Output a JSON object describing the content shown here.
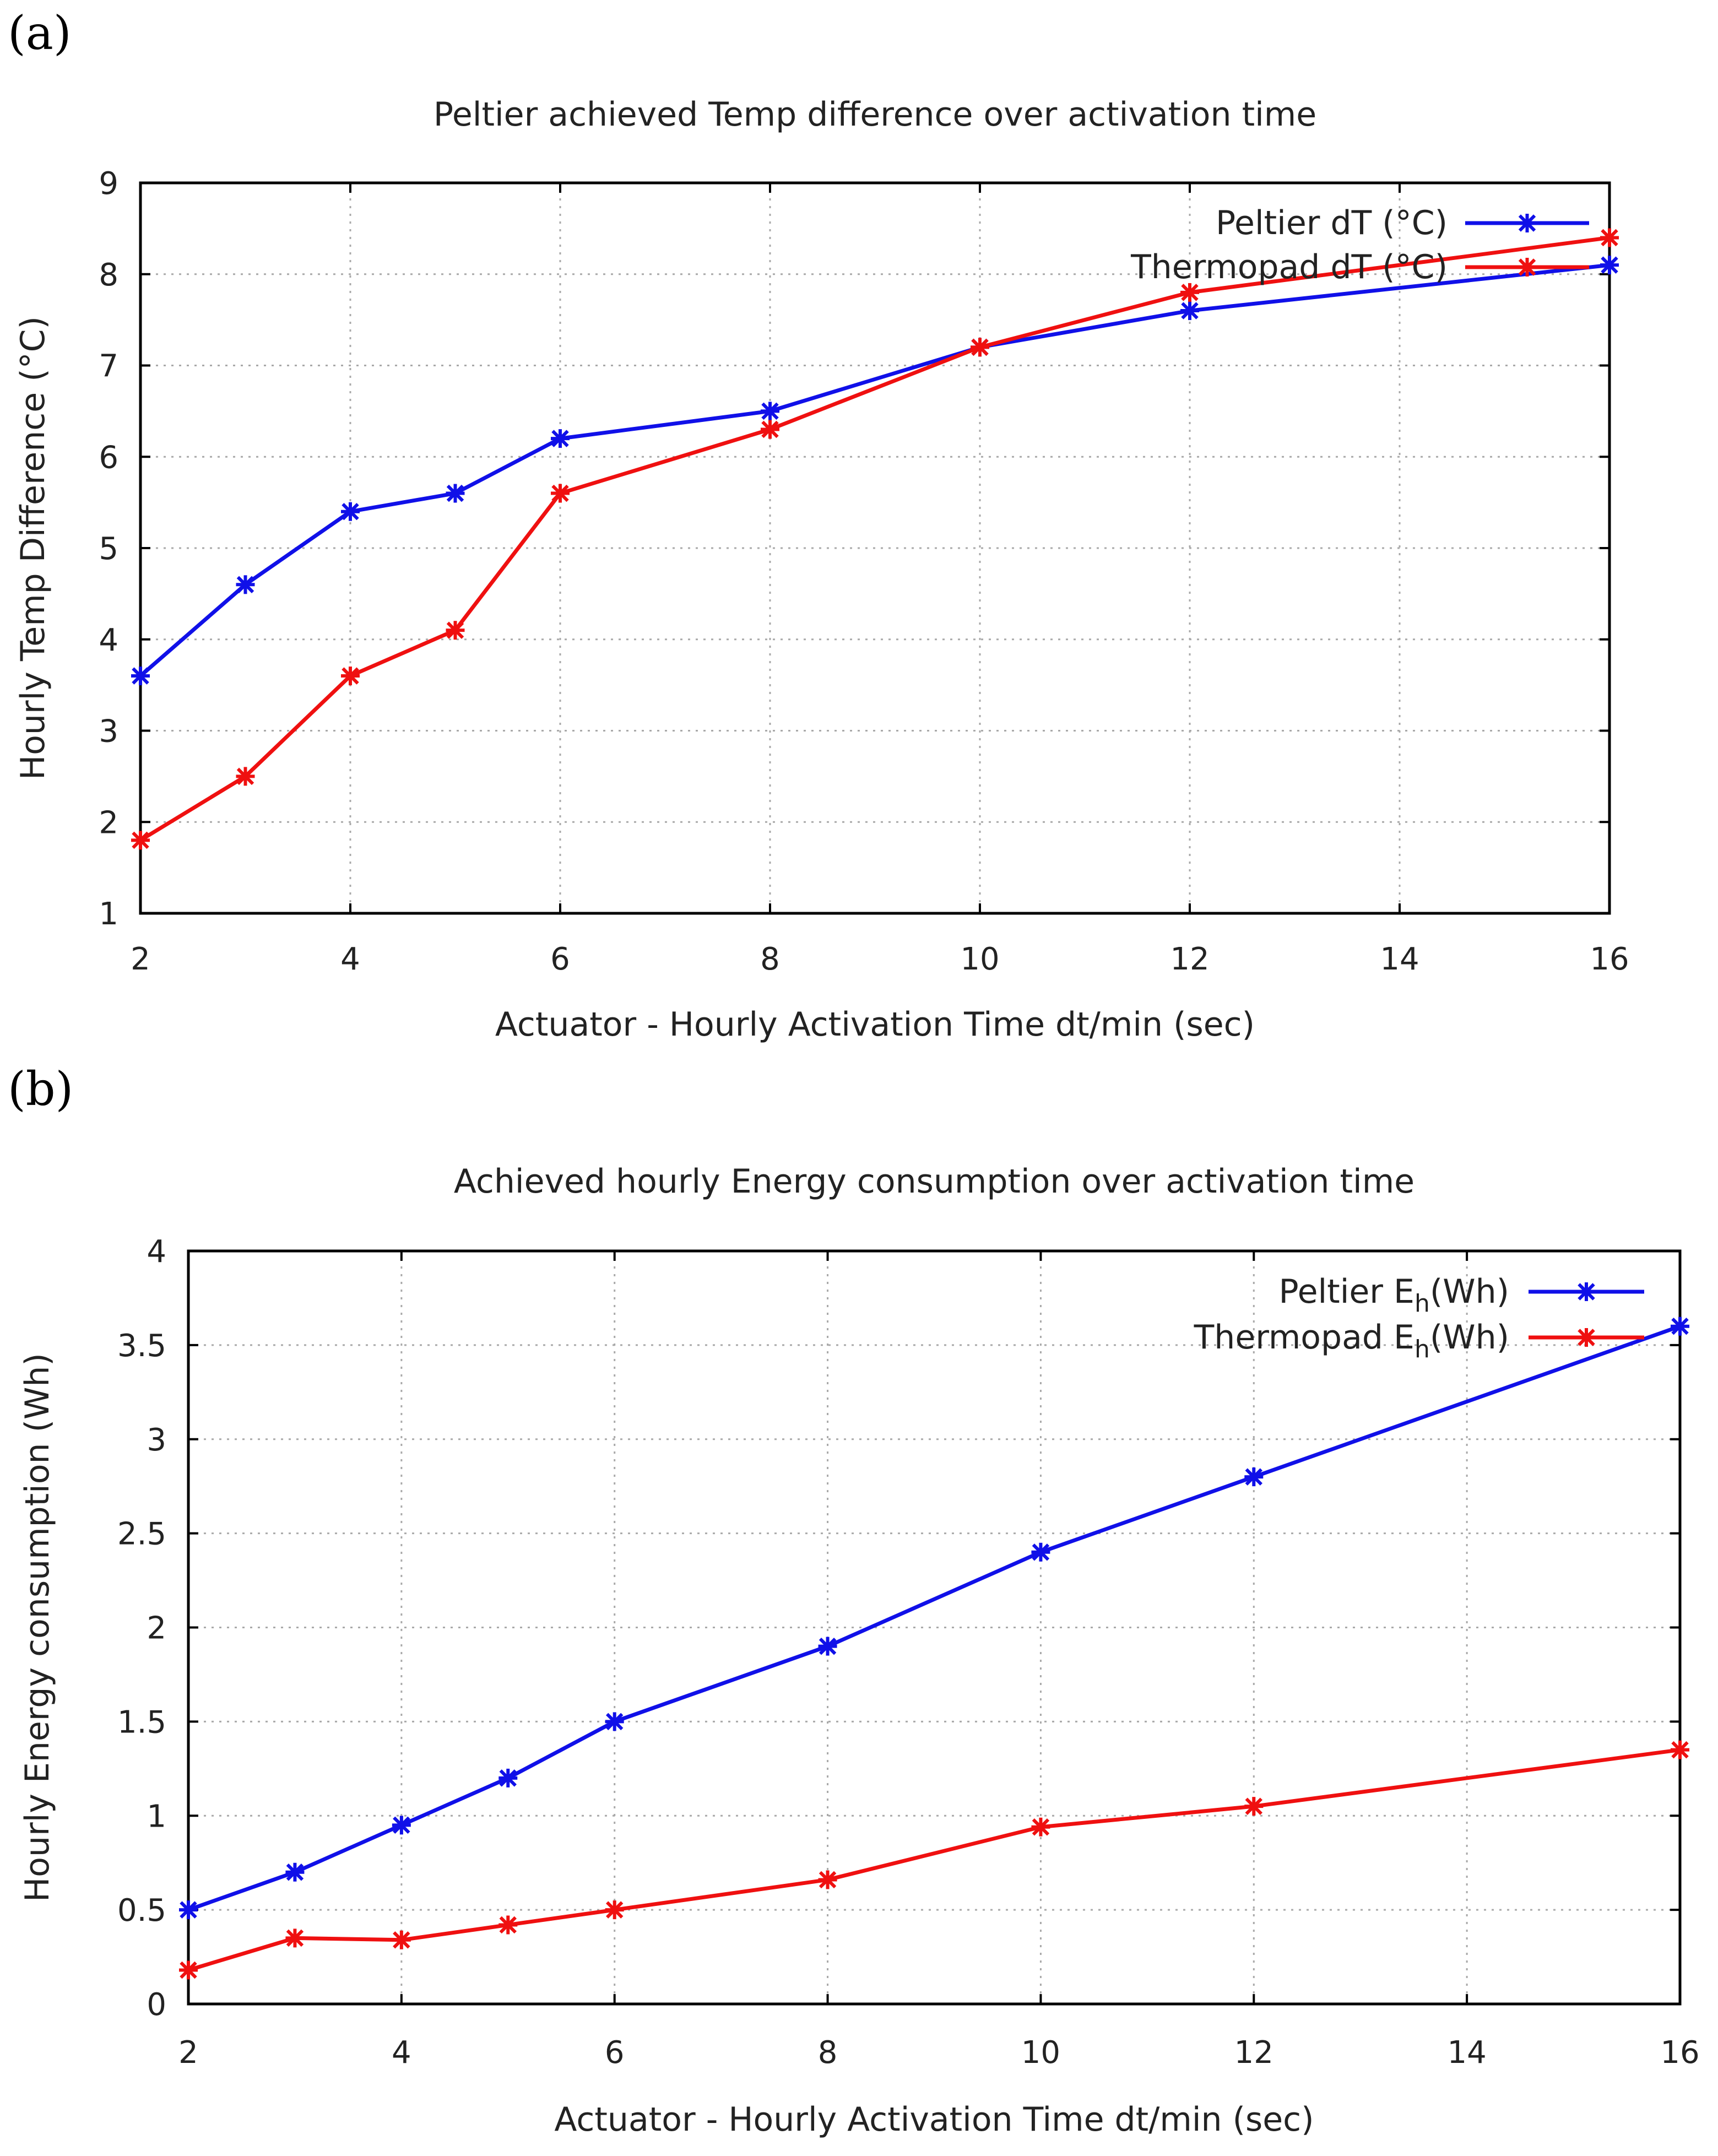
{
  "panels": {
    "a": {
      "label": "(a)"
    },
    "b": {
      "label": "(b)"
    }
  },
  "colors": {
    "peltier": "#1010e8",
    "thermopad": "#ef1010"
  },
  "chart_data": [
    {
      "type": "line",
      "title": "Peltier achieved Temp difference over activation time",
      "xlabel": "Actuator - Hourly Activation Time dt/min (sec)",
      "ylabel": "Hourly Temp Difference (°C)",
      "xlim": [
        2,
        16
      ],
      "ylim": [
        1,
        9
      ],
      "xticks": [
        2,
        4,
        6,
        8,
        10,
        12,
        14,
        16
      ],
      "yticks": [
        1,
        2,
        3,
        4,
        5,
        6,
        7,
        8,
        9
      ],
      "grid": true,
      "legend_position": "top-right",
      "series": [
        {
          "name": "Peltier dT (°C)",
          "color": "#1010e8",
          "x": [
            2,
            3,
            4,
            5,
            6,
            8,
            10,
            12,
            16
          ],
          "y": [
            3.6,
            4.6,
            5.4,
            5.6,
            6.2,
            6.5,
            7.2,
            7.6,
            8.1
          ]
        },
        {
          "name": "Thermopad dT (°C)",
          "color": "#ef1010",
          "x": [
            2,
            3,
            4,
            5,
            6,
            8,
            10,
            12,
            16
          ],
          "y": [
            1.8,
            2.5,
            3.6,
            4.1,
            5.6,
            6.3,
            7.2,
            7.8,
            8.4
          ]
        }
      ]
    },
    {
      "type": "line",
      "title": "Achieved hourly Energy consumption over activation time",
      "xlabel": "Actuator - Hourly Activation Time dt/min (sec)",
      "ylabel": "Hourly Energy consumption (Wh)",
      "xlim": [
        2,
        16
      ],
      "ylim": [
        0,
        4
      ],
      "xticks": [
        2,
        4,
        6,
        8,
        10,
        12,
        14,
        16
      ],
      "yticks": [
        0,
        0.5,
        1,
        1.5,
        2,
        2.5,
        3,
        3.5,
        4
      ],
      "grid": true,
      "legend_position": "top-right",
      "series": [
        {
          "name": "Peltier E",
          "name_sub": "h",
          "name_suffix": "(Wh)",
          "color": "#1010e8",
          "x": [
            2,
            3,
            4,
            5,
            6,
            8,
            10,
            12,
            16
          ],
          "y": [
            0.5,
            0.7,
            0.95,
            1.2,
            1.5,
            1.9,
            2.4,
            2.8,
            3.6
          ]
        },
        {
          "name": "Thermopad E",
          "name_sub": "h",
          "name_suffix": "(Wh)",
          "color": "#ef1010",
          "x": [
            2,
            3,
            4,
            5,
            6,
            8,
            10,
            12,
            16
          ],
          "y": [
            0.18,
            0.35,
            0.34,
            0.42,
            0.5,
            0.66,
            0.94,
            1.05,
            1.35
          ]
        }
      ]
    }
  ]
}
